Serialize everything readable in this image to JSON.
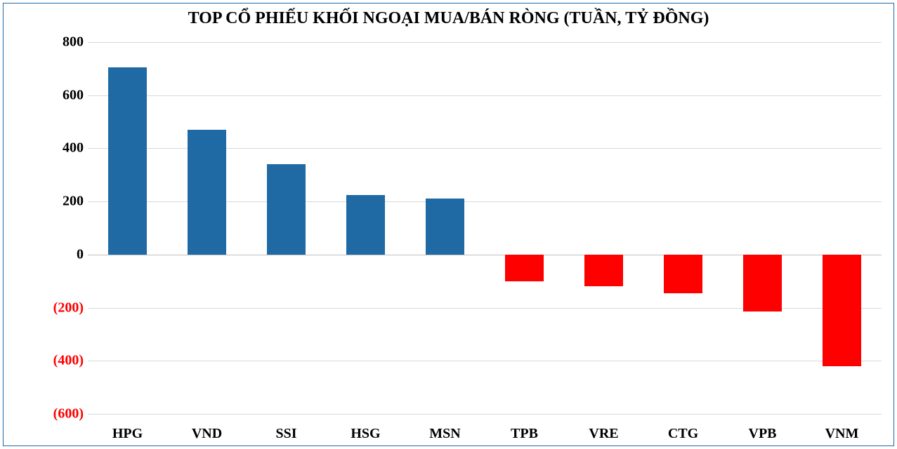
{
  "chart": {
    "type": "bar",
    "title": "TOP CỔ PHIẾU KHỐI NGOẠI MUA/BÁN RÒNG (TUẦN, TỶ ĐỒNG)",
    "title_fontsize": 24,
    "title_color": "#000000",
    "background_color": "#ffffff",
    "border_color": "#1f6aa5",
    "grid_color": "#d9d9d9",
    "font_family": "Times New Roman",
    "y_axis": {
      "min": -600,
      "max": 800,
      "tick_step": 200,
      "ticks": [
        800,
        600,
        400,
        200,
        0,
        -200,
        -400,
        -600
      ],
      "tick_labels": [
        "800",
        "600",
        "400",
        "200",
        "0",
        "(200)",
        "(400)",
        "(600)"
      ],
      "positive_color": "#000000",
      "negative_color": "#ff0000",
      "label_fontsize": 20
    },
    "x_axis": {
      "label_fontsize": 20,
      "label_color": "#000000"
    },
    "bar_width_ratio": 0.48,
    "positive_bar_color": "#1f6aa5",
    "negative_bar_color": "#ff0000",
    "categories": [
      "HPG",
      "VND",
      "SSI",
      "HSG",
      "MSN",
      "TPB",
      "VRE",
      "CTG",
      "VPB",
      "VNM"
    ],
    "values": [
      705,
      470,
      340,
      225,
      210,
      -100,
      -120,
      -145,
      -215,
      -420
    ]
  }
}
